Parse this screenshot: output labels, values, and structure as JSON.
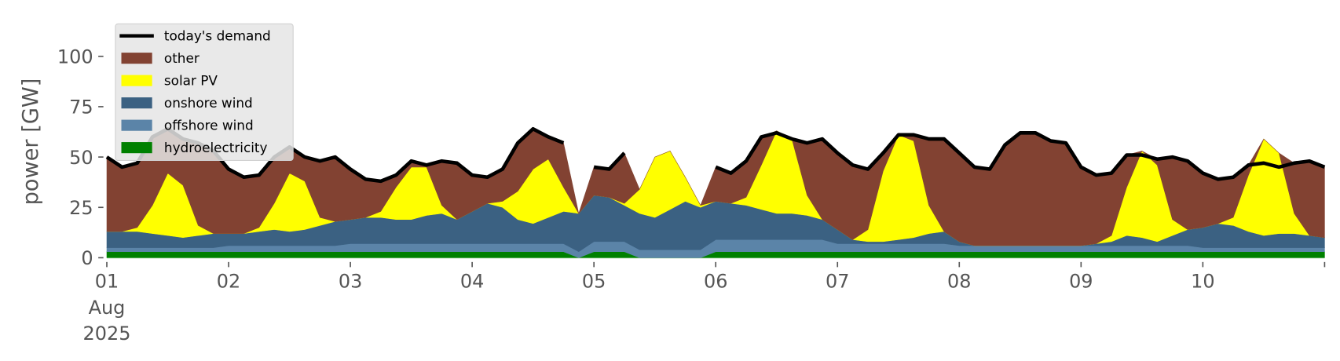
{
  "chart_data": {
    "type": "area",
    "title": "",
    "xlabel": "",
    "ylabel": "power [GW]",
    "ylim": [
      0,
      115
    ],
    "xlim_days": [
      0,
      10
    ],
    "x_step_hours": 3,
    "x_start": "2025-08-01 00:00",
    "yticks": [
      0,
      25,
      50,
      75,
      100
    ],
    "ytick_labels": [
      "0",
      "25",
      "50",
      "75",
      "100"
    ],
    "xticks": [
      {
        "day": 0,
        "label": "01",
        "sub": [
          "Aug",
          "2025"
        ]
      },
      {
        "day": 1,
        "label": "02"
      },
      {
        "day": 2,
        "label": "03"
      },
      {
        "day": 3,
        "label": "04"
      },
      {
        "day": 4,
        "label": "05"
      },
      {
        "day": 5,
        "label": "06"
      },
      {
        "day": 6,
        "label": "07"
      },
      {
        "day": 7,
        "label": "08"
      },
      {
        "day": 8,
        "label": "09"
      },
      {
        "day": 9,
        "label": "10"
      },
      {
        "day": 10,
        "label": ""
      }
    ],
    "grid": false,
    "legend_position": "top-left",
    "legend": [
      "today's demand",
      "other",
      "solar PV",
      "onshore wind",
      "offshore wind",
      "hydroelectricity"
    ],
    "stack_order": [
      "hydroelectricity",
      "offshore wind",
      "onshore wind",
      "solar PV",
      "other"
    ],
    "series": [
      {
        "name": "hydroelectricity",
        "color": "#008000",
        "values": [
          3,
          3,
          3,
          3,
          3,
          3,
          3,
          3,
          3,
          3,
          3,
          3,
          3,
          3,
          3,
          3,
          3,
          3,
          3,
          3,
          3,
          3,
          3,
          3,
          3,
          3,
          3,
          3,
          3,
          3,
          3,
          0,
          3,
          3,
          3,
          0,
          0,
          0,
          0,
          0,
          3,
          3,
          3,
          3,
          3,
          3,
          3,
          3,
          3,
          3,
          3,
          3,
          3,
          3,
          3,
          3,
          3,
          3,
          3,
          3,
          3,
          3,
          3,
          3,
          3,
          3,
          3,
          3,
          3,
          3,
          3,
          3,
          3,
          3,
          3,
          3,
          3,
          3,
          3,
          3,
          3
        ]
      },
      {
        "name": "offshore wind",
        "color": "#5b84a8",
        "values": [
          2,
          2,
          2,
          2,
          2,
          2,
          2,
          2,
          3,
          3,
          3,
          3,
          3,
          3,
          3,
          3,
          4,
          4,
          4,
          4,
          4,
          4,
          4,
          4,
          4,
          4,
          4,
          4,
          4,
          4,
          4,
          3,
          5,
          5,
          5,
          4,
          4,
          4,
          4,
          4,
          6,
          6,
          6,
          6,
          6,
          6,
          6,
          6,
          4,
          4,
          4,
          4,
          4,
          4,
          4,
          4,
          3,
          3,
          3,
          3,
          3,
          3,
          3,
          3,
          3,
          3,
          3,
          3,
          3,
          3,
          3,
          3,
          2,
          2,
          2,
          2,
          2,
          2,
          2,
          2,
          2
        ]
      },
      {
        "name": "onshore wind",
        "color": "#3b6182",
        "values": [
          8,
          8,
          8,
          7,
          6,
          5,
          6,
          7,
          6,
          6,
          7,
          8,
          7,
          8,
          10,
          12,
          12,
          13,
          13,
          12,
          12,
          14,
          15,
          12,
          16,
          20,
          18,
          12,
          10,
          13,
          16,
          19,
          23,
          22,
          18,
          18,
          16,
          20,
          24,
          21,
          19,
          18,
          17,
          15,
          13,
          13,
          12,
          10,
          7,
          2,
          1,
          1,
          2,
          3,
          5,
          6,
          2,
          0,
          0,
          0,
          0,
          0,
          0,
          0,
          0,
          1,
          2,
          5,
          4,
          2,
          5,
          8,
          10,
          12,
          11,
          8,
          6,
          7,
          7,
          6,
          5
        ]
      },
      {
        "name": "solar PV",
        "color": "#ffff00",
        "values": [
          0,
          0,
          2,
          14,
          31,
          26,
          5,
          0,
          0,
          0,
          2,
          13,
          29,
          24,
          4,
          0,
          0,
          0,
          3,
          16,
          26,
          24,
          4,
          0,
          0,
          0,
          3,
          14,
          27,
          29,
          12,
          0,
          0,
          0,
          1,
          12,
          30,
          29,
          12,
          1,
          0,
          0,
          4,
          22,
          41,
          37,
          10,
          0,
          0,
          0,
          6,
          35,
          52,
          48,
          14,
          0,
          0,
          0,
          0,
          0,
          0,
          0,
          0,
          0,
          0,
          0,
          3,
          24,
          43,
          38,
          8,
          0,
          0,
          0,
          4,
          28,
          48,
          40,
          10,
          0,
          0
        ]
      },
      {
        "name": "other",
        "color": "#824232",
        "values": [
          37,
          32,
          32,
          34,
          22,
          23,
          41,
          41,
          32,
          28,
          26,
          23,
          13,
          12,
          28,
          32,
          25,
          19,
          15,
          6,
          3,
          1,
          22,
          28,
          18,
          13,
          16,
          24,
          20,
          11,
          22,
          0,
          14,
          14,
          25,
          0,
          0,
          0,
          0,
          0,
          17,
          15,
          18,
          14,
          0,
          0,
          26,
          40,
          38,
          37,
          30,
          9,
          0,
          3,
          33,
          46,
          44,
          39,
          38,
          50,
          56,
          56,
          52,
          51,
          39,
          34,
          31,
          16,
          0,
          3,
          31,
          34,
          27,
          22,
          20,
          5,
          0,
          0,
          25,
          37,
          35
        ]
      },
      {
        "name": "today's demand",
        "color": "#000000",
        "type": "line",
        "values": [
          50,
          45,
          47,
          60,
          64,
          59,
          57,
          53,
          44,
          40,
          41,
          50,
          55,
          50,
          48,
          50,
          44,
          39,
          38,
          41,
          48,
          46,
          48,
          47,
          41,
          40,
          44,
          57,
          64,
          60,
          57,
          null,
          45,
          44,
          52,
          null,
          null,
          null,
          null,
          null,
          45,
          42,
          48,
          60,
          62,
          59,
          57,
          59,
          52,
          46,
          44,
          52,
          61,
          61,
          59,
          59,
          52,
          45,
          44,
          56,
          62,
          62,
          58,
          57,
          45,
          41,
          42,
          51,
          51,
          49,
          50,
          48,
          42,
          39,
          40,
          46,
          47,
          45,
          47,
          48,
          45
        ]
      }
    ]
  }
}
